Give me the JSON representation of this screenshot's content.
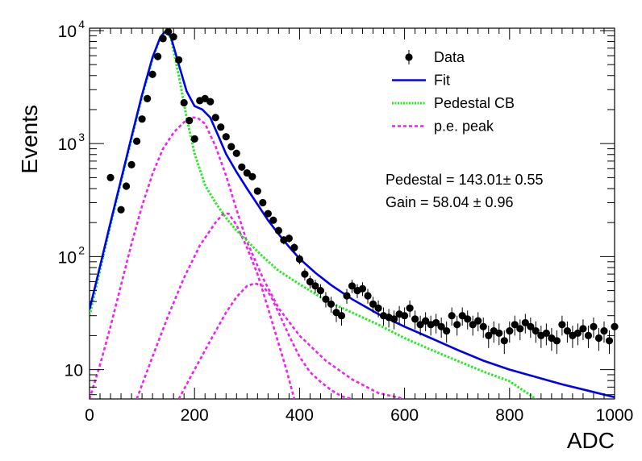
{
  "chart_data": {
    "type": "scatter",
    "title": "",
    "xlabel": "ADC",
    "ylabel": "Events",
    "xlim": [
      0,
      1000
    ],
    "ylim": [
      5.5,
      10500
    ],
    "y_scale": "log",
    "grid": false,
    "legend_position": "top-right",
    "x_ticks": [
      {
        "value": 0,
        "label": "0"
      },
      {
        "value": 200,
        "label": "200"
      },
      {
        "value": 400,
        "label": "400"
      },
      {
        "value": 600,
        "label": "600"
      },
      {
        "value": 800,
        "label": "800"
      },
      {
        "value": 1000,
        "label": "1000"
      }
    ],
    "y_ticks": [
      {
        "value": 10,
        "base": "10",
        "exp": ""
      },
      {
        "value": 100,
        "base": "10",
        "exp": "2"
      },
      {
        "value": 1000,
        "base": "10",
        "exp": "3"
      },
      {
        "value": 10000,
        "base": "10",
        "exp": "4"
      }
    ],
    "legend": [
      {
        "label": "Data",
        "style": "marker",
        "color": "#000000"
      },
      {
        "label": "Fit",
        "style": "solid",
        "color": "#0000ee"
      },
      {
        "label": "Pedestal CB",
        "style": "dotted",
        "color": "#22ee22"
      },
      {
        "label": "p.e. peak",
        "style": "dashed",
        "color": "#ee22ee"
      }
    ],
    "annotations": [
      "Pedestal = 143.01± 0.55",
      "Gain = 58.04 ± 0.96"
    ],
    "series": [
      {
        "name": "Data",
        "kind": "points",
        "color": "#000000",
        "points": [
          [
            40,
            500
          ],
          [
            60,
            260
          ],
          [
            70,
            420
          ],
          [
            80,
            650
          ],
          [
            90,
            1050
          ],
          [
            100,
            1650
          ],
          [
            110,
            2500
          ],
          [
            120,
            4100
          ],
          [
            130,
            5900
          ],
          [
            140,
            8500
          ],
          [
            150,
            9800
          ],
          [
            160,
            8800
          ],
          [
            170,
            5500
          ],
          [
            180,
            2300
          ],
          [
            190,
            1600
          ],
          [
            200,
            1100
          ],
          [
            210,
            2400
          ],
          [
            220,
            2500
          ],
          [
            230,
            2350
          ],
          [
            240,
            1700
          ],
          [
            250,
            1400
          ],
          [
            260,
            1150
          ],
          [
            270,
            940
          ],
          [
            280,
            820
          ],
          [
            290,
            620
          ],
          [
            300,
            550
          ],
          [
            310,
            510
          ],
          [
            320,
            380
          ],
          [
            330,
            300
          ],
          [
            340,
            240
          ],
          [
            350,
            210
          ],
          [
            360,
            170
          ],
          [
            370,
            140
          ],
          [
            380,
            145
          ],
          [
            390,
            120
          ],
          [
            400,
            95
          ],
          [
            410,
            70
          ],
          [
            420,
            60
          ],
          [
            430,
            55
          ],
          [
            440,
            50
          ],
          [
            450,
            42
          ],
          [
            460,
            38
          ],
          [
            470,
            32
          ],
          [
            480,
            30
          ],
          [
            490,
            45
          ],
          [
            500,
            55
          ],
          [
            510,
            50
          ],
          [
            520,
            52
          ],
          [
            530,
            45
          ],
          [
            540,
            38
          ],
          [
            550,
            35
          ],
          [
            560,
            30
          ],
          [
            570,
            29
          ],
          [
            580,
            28
          ],
          [
            590,
            31
          ],
          [
            600,
            30
          ],
          [
            610,
            35
          ],
          [
            620,
            28
          ],
          [
            630,
            25
          ],
          [
            640,
            27
          ],
          [
            650,
            25
          ],
          [
            660,
            26
          ],
          [
            670,
            24
          ],
          [
            680,
            22
          ],
          [
            690,
            30
          ],
          [
            700,
            25
          ],
          [
            710,
            30
          ],
          [
            720,
            28
          ],
          [
            730,
            25
          ],
          [
            740,
            27
          ],
          [
            750,
            24
          ],
          [
            760,
            20
          ],
          [
            770,
            22
          ],
          [
            780,
            21
          ],
          [
            790,
            18
          ],
          [
            800,
            22
          ],
          [
            810,
            25
          ],
          [
            820,
            23
          ],
          [
            830,
            26
          ],
          [
            840,
            24
          ],
          [
            850,
            22
          ],
          [
            860,
            20
          ],
          [
            870,
            21
          ],
          [
            880,
            19
          ],
          [
            890,
            18
          ],
          [
            900,
            25
          ],
          [
            910,
            22
          ],
          [
            920,
            20
          ],
          [
            930,
            21
          ],
          [
            940,
            23
          ],
          [
            950,
            20
          ],
          [
            960,
            24
          ],
          [
            970,
            19
          ],
          [
            980,
            22
          ],
          [
            990,
            18
          ],
          [
            1000,
            24
          ]
        ]
      },
      {
        "name": "Fit",
        "kind": "line",
        "color": "#0000ee",
        "points": [
          [
            0,
            34
          ],
          [
            20,
            82
          ],
          [
            40,
            200
          ],
          [
            60,
            480
          ],
          [
            80,
            1150
          ],
          [
            100,
            2700
          ],
          [
            120,
            5800
          ],
          [
            135,
            8800
          ],
          [
            145,
            9900
          ],
          [
            155,
            8800
          ],
          [
            170,
            5000
          ],
          [
            185,
            2900
          ],
          [
            200,
            2150
          ],
          [
            215,
            2000
          ],
          [
            230,
            1700
          ],
          [
            245,
            1180
          ],
          [
            260,
            810
          ],
          [
            280,
            560
          ],
          [
            300,
            400
          ],
          [
            320,
            290
          ],
          [
            340,
            210
          ],
          [
            360,
            158
          ],
          [
            380,
            122
          ],
          [
            400,
            96
          ],
          [
            430,
            72
          ],
          [
            460,
            56
          ],
          [
            500,
            42
          ],
          [
            550,
            31
          ],
          [
            600,
            24
          ],
          [
            650,
            19
          ],
          [
            700,
            15
          ],
          [
            750,
            12
          ],
          [
            800,
            10
          ],
          [
            850,
            8.6
          ],
          [
            900,
            7.4
          ],
          [
            950,
            6.5
          ],
          [
            1000,
            5.7
          ]
        ]
      },
      {
        "name": "Pedestal CB",
        "kind": "dotted",
        "color": "#22ee22",
        "points": [
          [
            0,
            30
          ],
          [
            20,
            75
          ],
          [
            40,
            190
          ],
          [
            60,
            460
          ],
          [
            80,
            1100
          ],
          [
            100,
            2600
          ],
          [
            120,
            5600
          ],
          [
            135,
            8700
          ],
          [
            145,
            9800
          ],
          [
            155,
            8600
          ],
          [
            170,
            4000
          ],
          [
            185,
            1700
          ],
          [
            200,
            820
          ],
          [
            220,
            430
          ],
          [
            240,
            300
          ],
          [
            260,
            220
          ],
          [
            280,
            170
          ],
          [
            300,
            138
          ],
          [
            330,
            100
          ],
          [
            360,
            75
          ],
          [
            400,
            57
          ],
          [
            450,
            41
          ],
          [
            500,
            32
          ],
          [
            550,
            25
          ],
          [
            600,
            19
          ],
          [
            650,
            15
          ],
          [
            700,
            12
          ],
          [
            750,
            9.6
          ],
          [
            800,
            7.9
          ],
          [
            850,
            5.5
          ]
        ]
      },
      {
        "name": "p.e. peak 1",
        "kind": "dashed",
        "color": "#ee22ee",
        "points": [
          [
            0,
            5.5
          ],
          [
            20,
            11
          ],
          [
            40,
            24
          ],
          [
            60,
            56
          ],
          [
            80,
            130
          ],
          [
            100,
            280
          ],
          [
            120,
            540
          ],
          [
            140,
            900
          ],
          [
            160,
            1250
          ],
          [
            180,
            1550
          ],
          [
            195,
            1700
          ],
          [
            205,
            1700
          ],
          [
            220,
            1500
          ],
          [
            240,
            950
          ],
          [
            260,
            520
          ],
          [
            280,
            260
          ],
          [
            300,
            135
          ],
          [
            330,
            65
          ],
          [
            360,
            35
          ],
          [
            400,
            20
          ],
          [
            450,
            12
          ],
          [
            500,
            8.2
          ],
          [
            550,
            6.2
          ],
          [
            600,
            5.5
          ]
        ]
      },
      {
        "name": "p.e. peak 2",
        "kind": "dashed",
        "color": "#ee22ee",
        "points": [
          [
            90,
            5.5
          ],
          [
            120,
            13
          ],
          [
            150,
            30
          ],
          [
            180,
            65
          ],
          [
            210,
            125
          ],
          [
            240,
            200
          ],
          [
            255,
            240
          ],
          [
            265,
            240
          ],
          [
            280,
            190
          ],
          [
            300,
            120
          ],
          [
            320,
            70
          ],
          [
            340,
            35
          ],
          [
            360,
            17
          ],
          [
            375,
            10
          ],
          [
            390,
            5.5
          ]
        ]
      },
      {
        "name": "p.e. peak 3",
        "kind": "dashed",
        "color": "#ee22ee",
        "points": [
          [
            170,
            5.5
          ],
          [
            200,
            10
          ],
          [
            230,
            18
          ],
          [
            260,
            32
          ],
          [
            280,
            44
          ],
          [
            300,
            55
          ],
          [
            315,
            58
          ],
          [
            330,
            55
          ],
          [
            345,
            45
          ],
          [
            360,
            32
          ],
          [
            380,
            20
          ],
          [
            400,
            13
          ],
          [
            420,
            9.5
          ],
          [
            440,
            7.8
          ],
          [
            460,
            6.6
          ],
          [
            480,
            5.8
          ],
          [
            500,
            5.5
          ]
        ]
      }
    ]
  }
}
